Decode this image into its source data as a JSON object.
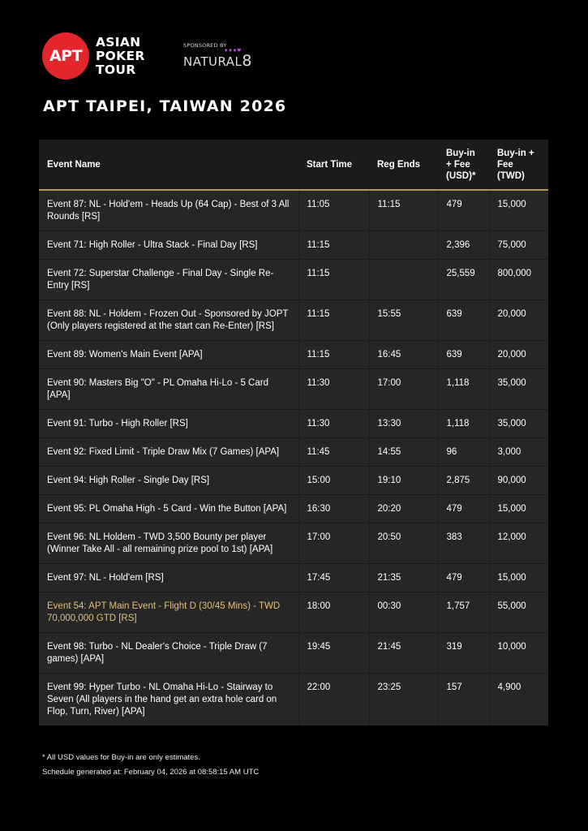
{
  "brand": {
    "logo_badge": "APT",
    "logo_lines": [
      "ASIAN",
      "POKER",
      "TOUR"
    ],
    "sponsored_by": "SPONSORED BY",
    "sponsor_name": "NATURAL",
    "sponsor_digit": "8",
    "accent": "#e3262b"
  },
  "title": "APT TAIPEI, TAIWAN 2026",
  "table": {
    "headers": [
      "Event Name",
      "Start Time",
      "Reg Ends",
      "Buy-in + Fee (USD)*",
      "Buy-in + Fee (TWD)"
    ],
    "rows": [
      [
        "Event 87: NL - Hold'em - Heads Up (64 Cap) - Best of 3 All Rounds [RS]",
        "11:05",
        "11:15",
        "479",
        "15,000"
      ],
      [
        "Event 71: High Roller - Ultra Stack - Final Day [RS]",
        "11:15",
        "",
        "2,396",
        "75,000"
      ],
      [
        "Event 72: Superstar Challenge - Final Day - Single Re-Entry [RS]",
        "11:15",
        "",
        "25,559",
        "800,000"
      ],
      [
        "Event 88: NL - Holdem - Frozen Out - Sponsored by JOPT (Only players registered at the start can Re-Enter) [RS]",
        "11:15",
        "15:55",
        "639",
        "20,000"
      ],
      [
        "Event 89: Women's Main Event [APA]",
        "11:15",
        "16:45",
        "639",
        "20,000"
      ],
      [
        "Event 90: Masters Big \"O\" - PL Omaha Hi-Lo - 5 Card [APA]",
        "11:30",
        "17:00",
        "1,118",
        "35,000"
      ],
      [
        "Event 91: Turbo - High Roller [RS]",
        "11:30",
        "13:30",
        "1,118",
        "35,000"
      ],
      [
        "Event 92: Fixed Limit - Triple Draw Mix (7 Games) [APA]",
        "11:45",
        "14:55",
        "96",
        "3,000"
      ],
      [
        "Event 94: High Roller - Single Day [RS]",
        "15:00",
        "19:10",
        "2,875",
        "90,000"
      ],
      [
        "Event 95: PL Omaha High - 5 Card - Win the Button [APA]",
        "16:30",
        "20:20",
        "479",
        "15,000"
      ],
      [
        "Event 96: NL Holdem - TWD 3,500 Bounty per player (Winner Take All - all remaining prize pool to 1st) [APA]",
        "17:00",
        "20:50",
        "383",
        "12,000"
      ],
      [
        "Event 97: NL - Hold'em  [RS]",
        "17:45",
        "21:35",
        "479",
        "15,000"
      ],
      [
        "Event 54: APT Main Event - Flight D (30/45 Mins) - TWD 70,000,000 GTD [RS]",
        "18:00",
        "00:30",
        "1,757",
        "55,000"
      ],
      [
        "Event 98: Turbo - NL Dealer's Choice - Triple Draw (7 games) [APA]",
        "19:45",
        "21:45",
        "319",
        "10,000"
      ],
      [
        "Event 99: Hyper Turbo - NL Omaha Hi-Lo - Stairway to Seven (All players in the hand get an extra hole card on Flop, Turn, River) [APA]",
        "22:00",
        "23:25",
        "157",
        "4,900"
      ]
    ],
    "highlight_row": 12,
    "highlight_color": "#e3bf78"
  },
  "footer": {
    "note": "* All USD values for Buy-in are only estimates.",
    "generated": "Schedule generated at: February 04, 2026 at 08:58:15 AM UTC"
  }
}
